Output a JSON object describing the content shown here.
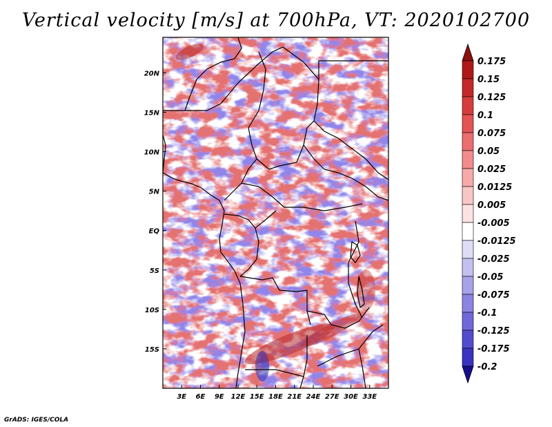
{
  "title": "Vertical velocity [m/s] at 700hPa, VT: 2020102700",
  "credit": "GrADS: IGES/COLA",
  "map": {
    "lon_range": [
      0,
      36
    ],
    "lat_range": [
      -20,
      24.5
    ],
    "lon_ticks": [
      {
        "value": 3,
        "label": "3E"
      },
      {
        "value": 6,
        "label": "6E"
      },
      {
        "value": 9,
        "label": "9E"
      },
      {
        "value": 12,
        "label": "12E"
      },
      {
        "value": 15,
        "label": "15E"
      },
      {
        "value": 18,
        "label": "18E"
      },
      {
        "value": 21,
        "label": "21E"
      },
      {
        "value": 24,
        "label": "24E"
      },
      {
        "value": 27,
        "label": "27E"
      },
      {
        "value": 30,
        "label": "30E"
      },
      {
        "value": 33,
        "label": "33E"
      }
    ],
    "lat_ticks": [
      {
        "value": 20,
        "label": "20N"
      },
      {
        "value": 15,
        "label": "15N"
      },
      {
        "value": 10,
        "label": "10N"
      },
      {
        "value": 5,
        "label": "5N"
      },
      {
        "value": 0,
        "label": "EQ"
      },
      {
        "value": -5,
        "label": "5S"
      },
      {
        "value": -10,
        "label": "10S"
      },
      {
        "value": -15,
        "label": "15S"
      }
    ]
  },
  "colorbar": {
    "levels": [
      {
        "label": "0.175",
        "color": "#b01818"
      },
      {
        "label": "0.15",
        "color": "#c42828"
      },
      {
        "label": "0.125",
        "color": "#d63c3c"
      },
      {
        "label": "0.1",
        "color": "#e45454"
      },
      {
        "label": "0.075",
        "color": "#ec6e6e"
      },
      {
        "label": "0.05",
        "color": "#f28c8c"
      },
      {
        "label": "0.025",
        "color": "#f6aaaa"
      },
      {
        "label": "0.0125",
        "color": "#f9c6c6"
      },
      {
        "label": "0.005",
        "color": "#fce2e2"
      },
      {
        "label": "-0.005",
        "color": "#ffffff"
      },
      {
        "label": "-0.0125",
        "color": "#dedcf6"
      },
      {
        "label": "-0.025",
        "color": "#c4c0f0"
      },
      {
        "label": "-0.05",
        "color": "#a8a2ea"
      },
      {
        "label": "-0.075",
        "color": "#8c84e2"
      },
      {
        "label": "-0.1",
        "color": "#7068da"
      },
      {
        "label": "-0.125",
        "color": "#544ccf"
      },
      {
        "label": "-0.175",
        "color": "#3a32c0"
      },
      {
        "label": "-0.2",
        "color": "#241cad"
      }
    ],
    "top_arrow_color": "#8c1010",
    "bottom_arrow_color": "#180e8c"
  }
}
